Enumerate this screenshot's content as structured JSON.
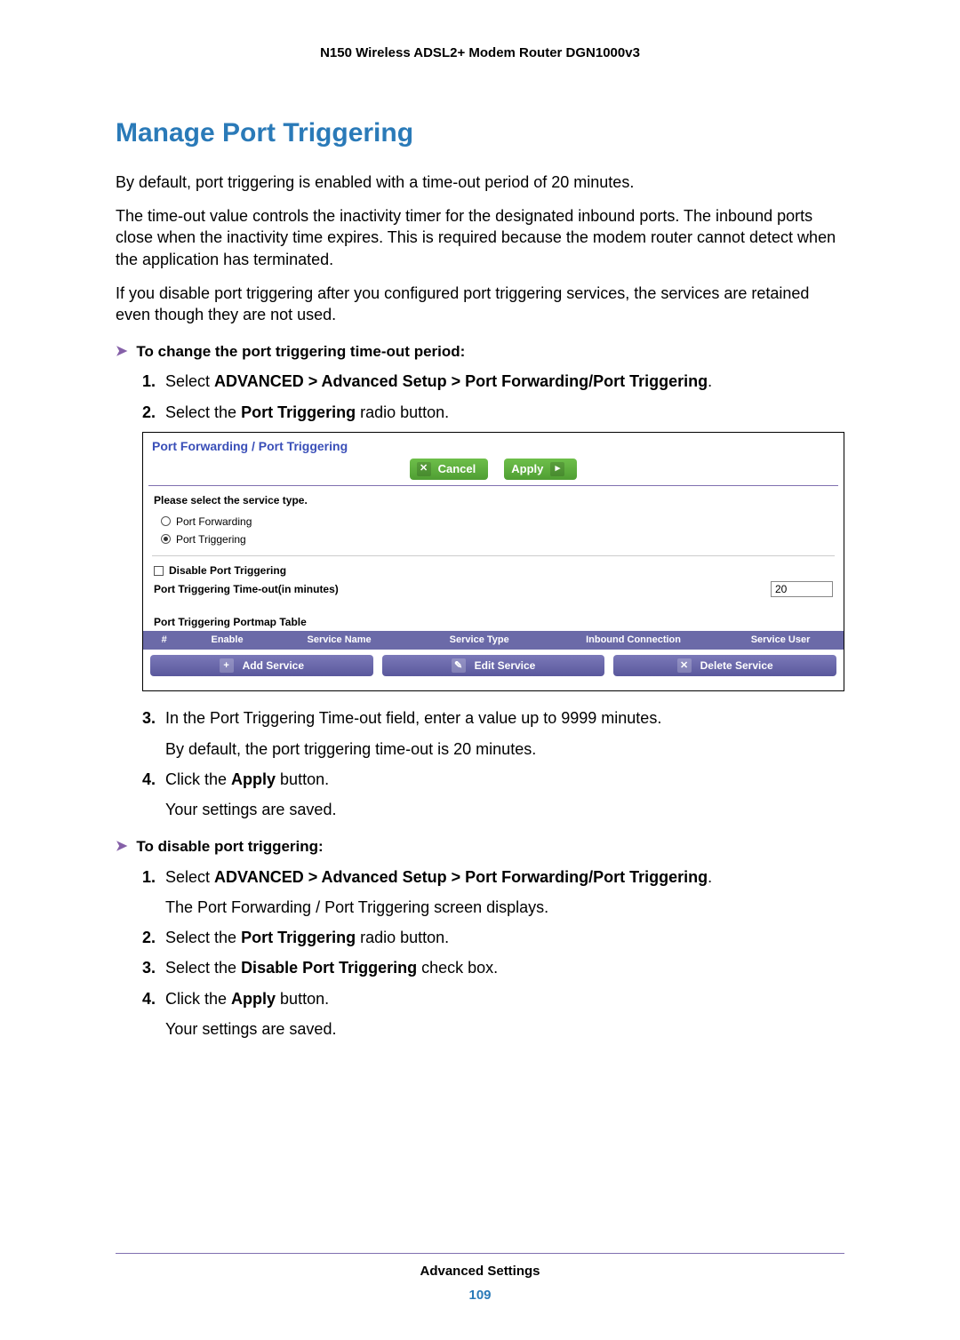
{
  "doc_header": "N150 Wireless ADSL2+ Modem Router DGN1000v3",
  "section_title": "Manage Port Triggering",
  "intro_paras": [
    "By default, port triggering is enabled with a time-out period of 20 minutes.",
    "The time-out value controls the inactivity timer for the designated inbound ports. The inbound ports close when the inactivity time expires. This is required because the modem router cannot detect when the application has terminated.",
    "If you disable port triggering after you configured port triggering services, the services are retained even though they are not used."
  ],
  "task1_title": "To change the port triggering time-out period:",
  "task1_step1_prefix": "Select ",
  "task1_step1_bold": "ADVANCED > Advanced Setup > Port Forwarding/Port Triggering",
  "task1_step1_suffix": ".",
  "task1_step2_a": "Select the ",
  "task1_step2_b": "Port Triggering",
  "task1_step2_c": " radio button.",
  "ui": {
    "panel_title": "Port Forwarding / Port Triggering",
    "cancel_label": "Cancel",
    "apply_label": "Apply",
    "select_label": "Please select the service type.",
    "radio1": "Port Forwarding",
    "radio2": "Port Triggering",
    "disable_cb": "Disable Port Triggering",
    "timeout_label": "Port Triggering Time-out(in minutes)",
    "timeout_value": "20",
    "table_title": "Port Triggering Portmap Table",
    "th_num": "#",
    "th_enable": "Enable",
    "th_service_name": "Service Name",
    "th_service_type": "Service Type",
    "th_inbound": "Inbound Connection",
    "th_user": "Service User",
    "add_service": "Add Service",
    "edit_service": "Edit Service",
    "delete_service": "Delete Service"
  },
  "task1_step3_text": "In the Port Triggering Time-out field, enter a value up to 9999 minutes.",
  "task1_step3_sub": "By default, the port triggering time-out is 20 minutes.",
  "task1_step4_a": "Click the ",
  "task1_step4_b": "Apply",
  "task1_step4_c": " button.",
  "task1_step4_sub": "Your settings are saved.",
  "task2_title": "To disable port triggering:",
  "task2_step1_prefix": "Select ",
  "task2_step1_bold": "ADVANCED > Advanced Setup > Port Forwarding/Port Triggering",
  "task2_step1_suffix": ".",
  "task2_step1_sub": "The Port Forwarding / Port Triggering screen displays.",
  "task2_step2_a": "Select the ",
  "task2_step2_b": "Port Triggering",
  "task2_step2_c": " radio button.",
  "task2_step3_a": "Select the ",
  "task2_step3_b": "Disable Port Triggering",
  "task2_step3_c": " check box.",
  "task2_step4_a": "Click the ",
  "task2_step4_b": "Apply",
  "task2_step4_c": " button.",
  "task2_step4_sub": "Your settings are saved.",
  "footer_name": "Advanced Settings",
  "footer_page": "109"
}
